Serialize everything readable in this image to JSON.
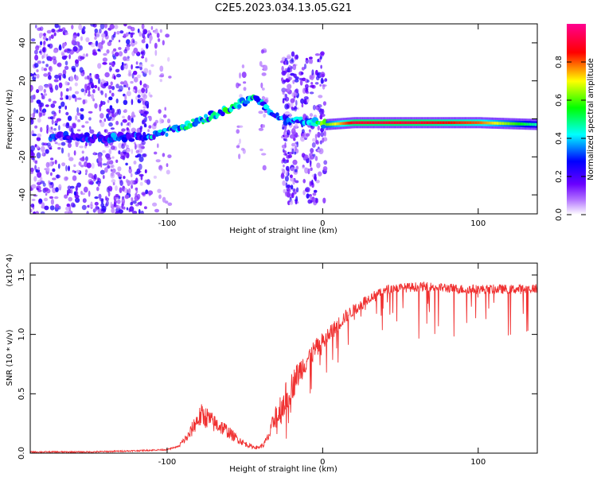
{
  "figure": {
    "title": "C2E5.2023.034.13.05.G21"
  },
  "chart_data": [
    {
      "type": "heatmap",
      "title": "C2E5.2023.034.13.05.G21",
      "xlabel": "Height of straight line (km)",
      "ylabel": "Frequency (Hz)",
      "xlim": [
        -188,
        138
      ],
      "ylim": [
        -50,
        50
      ],
      "xticks": [
        -100,
        0,
        100
      ],
      "xtick_labels": [
        "-100",
        "0",
        "100"
      ],
      "yticks": [
        -40,
        -20,
        0,
        20,
        40
      ],
      "ytick_labels": [
        "-40",
        "-20",
        "0",
        "20",
        "40"
      ],
      "colorbar": {
        "label": "Normalized spectral amplitude",
        "range": [
          0,
          1
        ],
        "ticks": [
          0.0,
          0.2,
          0.4,
          0.6,
          0.8
        ],
        "tick_labels": [
          "0.0",
          "0.2",
          "0.4",
          "0.6",
          "0.8"
        ],
        "colormap": [
          "#ffffff",
          "#7a00ff",
          "#0000ff",
          "#00ffff",
          "#00ff00",
          "#ffff00",
          "#ff0000",
          "#ff00a0"
        ]
      },
      "ridge": {
        "x": [
          -170,
          -150,
          -130,
          -110,
          -100,
          -90,
          -80,
          -70,
          -60,
          -50,
          -44,
          -38,
          -30,
          -22,
          -10,
          2,
          20,
          60,
          100,
          138
        ],
        "freq": [
          -9,
          -10,
          -10,
          -9,
          -7,
          -4,
          -1,
          2,
          5,
          9,
          12,
          7,
          1,
          -1,
          -1,
          -3,
          -2,
          -2,
          -2,
          -3
        ],
        "amplitude": [
          0.3,
          0.3,
          0.35,
          0.4,
          0.45,
          0.45,
          0.5,
          0.5,
          0.55,
          0.5,
          0.45,
          0.4,
          0.4,
          0.35,
          0.4,
          0.6,
          0.9,
          0.9,
          0.8,
          0.45
        ]
      },
      "grid": false
    },
    {
      "type": "line",
      "xlabel": "Height of straight line (km)",
      "ylabel": "SNR (10 * v/v)",
      "ylabel_multiplier": "(x10^4)",
      "xlim": [
        -188,
        138
      ],
      "ylim": [
        0,
        1.6
      ],
      "xticks": [
        -100,
        0,
        100
      ],
      "xtick_labels": [
        "-100",
        "0",
        "100"
      ],
      "yticks": [
        0.0,
        0.5,
        1.0,
        1.5
      ],
      "ytick_labels": [
        "0.0",
        "0.5",
        "1.0",
        "1.5"
      ],
      "series": [
        {
          "color": "#f03030",
          "x": [
            -188,
            -150,
            -120,
            -100,
            -92,
            -86,
            -82,
            -78,
            -74,
            -70,
            -66,
            -62,
            -58,
            -54,
            -50,
            -46,
            -42,
            -38,
            -34,
            -30,
            -26,
            -22,
            -18,
            -14,
            -10,
            -6,
            -2,
            2,
            6,
            10,
            14,
            18,
            22,
            26,
            30,
            34,
            38,
            42,
            46,
            50,
            60,
            70,
            80,
            90,
            100,
            110,
            120,
            130,
            138
          ],
          "values": [
            0.01,
            0.01,
            0.02,
            0.03,
            0.06,
            0.13,
            0.22,
            0.28,
            0.26,
            0.22,
            0.2,
            0.17,
            0.13,
            0.1,
            0.07,
            0.05,
            0.04,
            0.06,
            0.14,
            0.3,
            0.42,
            0.52,
            0.62,
            0.72,
            0.8,
            0.86,
            0.92,
            0.97,
            1.03,
            1.09,
            1.15,
            1.19,
            1.23,
            1.28,
            1.31,
            1.34,
            1.36,
            1.38,
            1.39,
            1.39,
            1.4,
            1.4,
            1.39,
            1.38,
            1.38,
            1.38,
            1.38,
            1.38,
            1.39
          ]
        }
      ],
      "grid": false
    }
  ]
}
